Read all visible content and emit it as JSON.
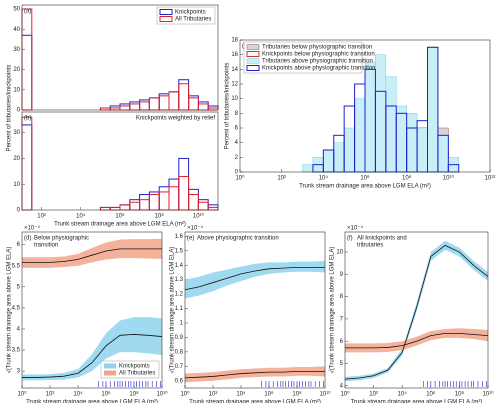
{
  "chart_data": [
    {
      "type": "histogram",
      "panel_label": "(a)",
      "ylabel": "Percent of tributaries/knickpoints",
      "xscale": "log",
      "xlim": [
        10,
        100000000000
      ],
      "ylim": [
        0,
        52
      ],
      "yticks": [
        0,
        10,
        20,
        30,
        40,
        50
      ],
      "bins": [
        10,
        31.62,
        100,
        316.2,
        1000,
        3162,
        10000,
        31623,
        100000,
        316228,
        1000000,
        3162278,
        10000000,
        31622777,
        100000000,
        316227766,
        1000000000,
        3162277660,
        10000000000,
        31622776602,
        100000000000
      ],
      "legend": "upper right",
      "series": [
        {
          "name": "Knickpoints",
          "color": "#1f1fd0",
          "fill": false,
          "values": [
            37,
            0,
            0,
            0,
            0,
            0,
            0,
            0,
            1,
            2,
            3,
            4,
            5,
            6,
            8,
            9,
            15,
            7,
            4,
            2
          ]
        },
        {
          "name": "All Tributaries",
          "color": "#e0202a",
          "fill": false,
          "values": [
            50,
            0,
            0,
            0,
            0,
            0,
            0,
            0,
            1,
            1,
            2,
            3,
            4,
            6,
            7,
            9,
            13,
            6,
            3,
            1
          ]
        }
      ]
    },
    {
      "type": "histogram",
      "panel_label": "(b)",
      "annotation": "Knickpoints weighted by relief",
      "xscale": "log",
      "xlabel": "Trunk stream drainage area above LGM ELA (m²)",
      "xlim": [
        10,
        100000000000
      ],
      "ylim": [
        0,
        38
      ],
      "yticks": [
        0,
        10,
        20,
        30
      ],
      "xticks": [
        {
          "value": 100,
          "label": "10²"
        },
        {
          "value": 10000,
          "label": "10⁴"
        },
        {
          "value": 1000000,
          "label": "10⁶"
        },
        {
          "value": 100000000,
          "label": "10⁸"
        },
        {
          "value": 10000000000,
          "label": "10¹⁰"
        }
      ],
      "bins": [
        10,
        31.62,
        100,
        316.2,
        1000,
        3162,
        10000,
        31623,
        100000,
        316228,
        1000000,
        3162278,
        10000000,
        31622777,
        100000000,
        316227766,
        1000000000,
        3162277660,
        10000000000,
        31622776602,
        100000000000
      ],
      "series": [
        {
          "color": "#1f1fd0",
          "fill": false,
          "values": [
            33,
            0,
            0,
            0,
            0,
            0,
            0,
            0,
            1,
            1,
            2,
            4,
            6,
            7,
            9,
            12,
            20,
            8,
            4,
            2
          ]
        },
        {
          "color": "#e0202a",
          "fill": false,
          "values": [
            36,
            0,
            0,
            0,
            0,
            0,
            0,
            0,
            1,
            1,
            2,
            3,
            4,
            6,
            7,
            9,
            13,
            6,
            3,
            1
          ]
        }
      ]
    },
    {
      "type": "histogram",
      "panel_label": "(c)",
      "ylabel": "Percent of tributaries/knickpoints",
      "xscale": "log",
      "xlabel": "Trunk stream drainage area above LGM ELA (m²)",
      "xlim": [
        1,
        1000000000000
      ],
      "ylim": [
        0,
        18
      ],
      "yticks": [
        0,
        2,
        4,
        6,
        8,
        10,
        12,
        14,
        16,
        18
      ],
      "xticks": [
        {
          "value": 1,
          "label": "10⁰"
        },
        {
          "value": 100,
          "label": "10²"
        },
        {
          "value": 10000,
          "label": "10⁴"
        },
        {
          "value": 1000000,
          "label": "10⁶"
        },
        {
          "value": 100000000,
          "label": "10⁸"
        },
        {
          "value": 10000000000,
          "label": "10¹⁰"
        },
        {
          "value": 1000000000000,
          "label": "10¹²"
        }
      ],
      "bins": [
        1000,
        3162,
        10000,
        31623,
        100000,
        316228,
        1000000,
        3162278,
        10000000,
        31622777,
        100000000,
        316227766,
        1000000000,
        3162277660,
        10000000000,
        31622776602,
        100000000000
      ],
      "legend": "upper left",
      "series": [
        {
          "name": "Tributaries below physiographic transition",
          "color": "#d6d6d6",
          "edge": "#9a5a4a",
          "fill": true,
          "values": [
            0,
            0,
            0,
            0,
            0,
            0,
            1,
            1,
            1,
            2,
            4,
            5,
            16,
            6,
            1,
            0
          ]
        },
        {
          "name": "Knickpoints below physiographic transition",
          "color": "#c0392b",
          "fill": false,
          "values": [
            0,
            0,
            0,
            0,
            0,
            0,
            0,
            1,
            1,
            3,
            6,
            6,
            17,
            3,
            0,
            0
          ]
        },
        {
          "name": "Tributaries above physiographic transition",
          "color": "#c8eef7",
          "edge": "#7fcde6",
          "fill": true,
          "values": [
            1,
            2,
            3,
            4,
            6,
            10,
            15,
            16,
            13,
            9,
            8,
            6,
            17,
            5,
            2,
            0
          ]
        },
        {
          "name": "Knickpoints above physiographic transition",
          "color": "#1f1fd0",
          "fill": false,
          "values": [
            0,
            1,
            3,
            5,
            9,
            12,
            14,
            11,
            9,
            8,
            6,
            7,
            17,
            5,
            1,
            0
          ]
        }
      ]
    },
    {
      "type": "band",
      "panel_label": "(d)",
      "title": [
        "Below physiographic",
        "transition"
      ],
      "multiplier": "×10⁻⁴",
      "ylabel": "√(Trunk stream drainage area above LGM ELA)",
      "xlabel": "Trunk stream drainage area above LGM ELA (m²)",
      "xscale": "log",
      "xlim": [
        1,
        10000000000
      ],
      "ylim": [
        2.6,
        6.3
      ],
      "yticks": [
        3,
        3.5,
        4,
        4.5,
        5,
        5.5,
        6
      ],
      "xticks": [
        {
          "value": 1,
          "label": "10⁰"
        },
        {
          "value": 100,
          "label": "10²"
        },
        {
          "value": 10000,
          "label": "10⁴"
        },
        {
          "value": 1000000,
          "label": "10⁶"
        },
        {
          "value": 100000000,
          "label": "10⁸"
        },
        {
          "value": 10000000000,
          "label": "10¹⁰"
        }
      ],
      "x": [
        1,
        10,
        100,
        1000,
        10000,
        100000,
        1000000,
        10000000,
        100000000,
        1000000000,
        10000000000
      ],
      "legend": "lower right",
      "line_color": "#111111",
      "rug_color": "#1f1fd0",
      "rug": [
        300000,
        600000,
        1000000,
        2000000,
        4000000,
        7000000,
        10000000,
        15000000,
        25000000,
        40000000,
        60000000,
        100000000,
        150000000,
        250000000,
        400000000,
        700000000,
        1000000000,
        2000000000,
        4000000000,
        8000000000
      ],
      "series": [
        {
          "name": "Knickpoints",
          "color": "#8fd3ee",
          "values": [
            2.85,
            2.85,
            2.86,
            2.88,
            2.95,
            3.2,
            3.6,
            3.85,
            3.87,
            3.85,
            3.82
          ],
          "lower": [
            2.78,
            2.78,
            2.79,
            2.8,
            2.85,
            3.0,
            3.3,
            3.45,
            3.45,
            3.42,
            3.38
          ],
          "upper": [
            2.92,
            2.92,
            2.93,
            2.96,
            3.05,
            3.4,
            3.9,
            4.2,
            4.28,
            4.28,
            4.25
          ]
        },
        {
          "name": "All Tributaries",
          "color": "#f3a488",
          "values": [
            5.58,
            5.58,
            5.58,
            5.6,
            5.65,
            5.75,
            5.85,
            5.9,
            5.9,
            5.9,
            5.9
          ],
          "lower": [
            5.45,
            5.45,
            5.45,
            5.47,
            5.5,
            5.58,
            5.65,
            5.68,
            5.68,
            5.67,
            5.66
          ],
          "upper": [
            5.7,
            5.7,
            5.7,
            5.72,
            5.78,
            5.92,
            6.05,
            6.12,
            6.13,
            6.13,
            6.14
          ]
        }
      ]
    },
    {
      "type": "band",
      "panel_label": "(e)",
      "title": [
        "Above physiographic transition"
      ],
      "multiplier": "×10⁻⁴",
      "ylabel": "√(Trunk stream drainage area above LGM ELA)",
      "xlabel": "Trunk stream drainage area above LGM ELA (m²)",
      "xscale": "log",
      "xlim": [
        1,
        10000000000
      ],
      "ylim": [
        0.55,
        1.63
      ],
      "yticks": [
        0.6,
        0.7,
        0.8,
        0.9,
        1,
        1.1,
        1.2,
        1.3,
        1.4,
        1.5,
        1.6
      ],
      "xticks": [
        {
          "value": 1,
          "label": "10⁰"
        },
        {
          "value": 100,
          "label": "10²"
        },
        {
          "value": 10000,
          "label": "10⁴"
        },
        {
          "value": 1000000,
          "label": "10⁶"
        },
        {
          "value": 100000000,
          "label": "10⁸"
        },
        {
          "value": 10000000000,
          "label": "10¹⁰"
        }
      ],
      "x": [
        1,
        10,
        100,
        1000,
        10000,
        100000,
        1000000,
        10000000,
        100000000,
        1000000000,
        10000000000
      ],
      "line_color": "#111111",
      "rug_color": "#1f1fd0",
      "rug": [
        300000,
        600000,
        1000000,
        2000000,
        4000000,
        7000000,
        10000000,
        15000000,
        25000000,
        40000000,
        60000000,
        100000000,
        150000000,
        250000000,
        400000000,
        700000000,
        1000000000,
        2000000000,
        4000000000,
        8000000000
      ],
      "series": [
        {
          "color": "#8fd3ee",
          "values": [
            1.23,
            1.25,
            1.28,
            1.31,
            1.34,
            1.36,
            1.375,
            1.38,
            1.385,
            1.385,
            1.385
          ],
          "lower": [
            1.17,
            1.19,
            1.22,
            1.26,
            1.29,
            1.32,
            1.34,
            1.35,
            1.355,
            1.355,
            1.35
          ],
          "upper": [
            1.3,
            1.32,
            1.35,
            1.37,
            1.39,
            1.41,
            1.42,
            1.42,
            1.425,
            1.425,
            1.43
          ]
        },
        {
          "color": "#f3a488",
          "values": [
            0.62,
            0.625,
            0.63,
            0.64,
            0.65,
            0.655,
            0.66,
            0.66,
            0.665,
            0.665,
            0.665
          ],
          "lower": [
            0.59,
            0.595,
            0.6,
            0.61,
            0.62,
            0.625,
            0.63,
            0.63,
            0.635,
            0.635,
            0.63
          ],
          "upper": [
            0.65,
            0.655,
            0.66,
            0.67,
            0.68,
            0.685,
            0.69,
            0.69,
            0.695,
            0.695,
            0.7
          ]
        }
      ]
    },
    {
      "type": "band",
      "panel_label": "(f)",
      "title": [
        "All knickpoints and",
        "tributaries"
      ],
      "multiplier": "×10⁻⁴",
      "ylabel": "√(Trunk stream drainage area above LGM ELA)",
      "xlabel": "Trunk stream drainage area above LGM ELA (m²)",
      "xscale": "log",
      "xlim": [
        1,
        10000000000
      ],
      "ylim": [
        3.9,
        10.9
      ],
      "yticks": [
        4,
        5,
        6,
        7,
        8,
        9,
        10
      ],
      "xticks": [
        {
          "value": 1,
          "label": "10⁰"
        },
        {
          "value": 100,
          "label": "10²"
        },
        {
          "value": 10000,
          "label": "10⁴"
        },
        {
          "value": 1000000,
          "label": "10⁶"
        },
        {
          "value": 100000000,
          "label": "10⁸"
        },
        {
          "value": 10000000000,
          "label": "10¹⁰"
        }
      ],
      "x": [
        1,
        10,
        100,
        1000,
        10000,
        100000,
        1000000,
        10000000,
        100000000,
        1000000000,
        10000000000
      ],
      "line_color": "#111111",
      "rug_color": "#1f1fd0",
      "rug": [
        300000,
        600000,
        1000000,
        2000000,
        4000000,
        7000000,
        10000000,
        15000000,
        25000000,
        40000000,
        60000000,
        100000000,
        150000000,
        250000000,
        400000000,
        700000000,
        1000000000,
        2000000000,
        4000000000,
        8000000000
      ],
      "series": [
        {
          "color": "#8fd3ee",
          "values": [
            4.3,
            4.35,
            4.45,
            4.7,
            5.5,
            7.5,
            9.8,
            10.3,
            10.0,
            9.4,
            8.9
          ],
          "lower": [
            4.2,
            4.25,
            4.35,
            4.6,
            5.35,
            7.3,
            9.6,
            10.1,
            9.8,
            9.2,
            8.7
          ],
          "upper": [
            4.4,
            4.45,
            4.55,
            4.8,
            5.65,
            7.7,
            10.0,
            10.5,
            10.2,
            9.6,
            9.1
          ]
        },
        {
          "color": "#f3a488",
          "values": [
            5.7,
            5.7,
            5.7,
            5.72,
            5.8,
            6.0,
            6.25,
            6.35,
            6.35,
            6.3,
            6.25
          ],
          "lower": [
            5.5,
            5.5,
            5.5,
            5.52,
            5.6,
            5.8,
            6.05,
            6.15,
            6.15,
            6.1,
            6.0
          ],
          "upper": [
            5.9,
            5.9,
            5.9,
            5.92,
            6.0,
            6.2,
            6.45,
            6.55,
            6.58,
            6.55,
            6.5
          ]
        }
      ]
    }
  ]
}
